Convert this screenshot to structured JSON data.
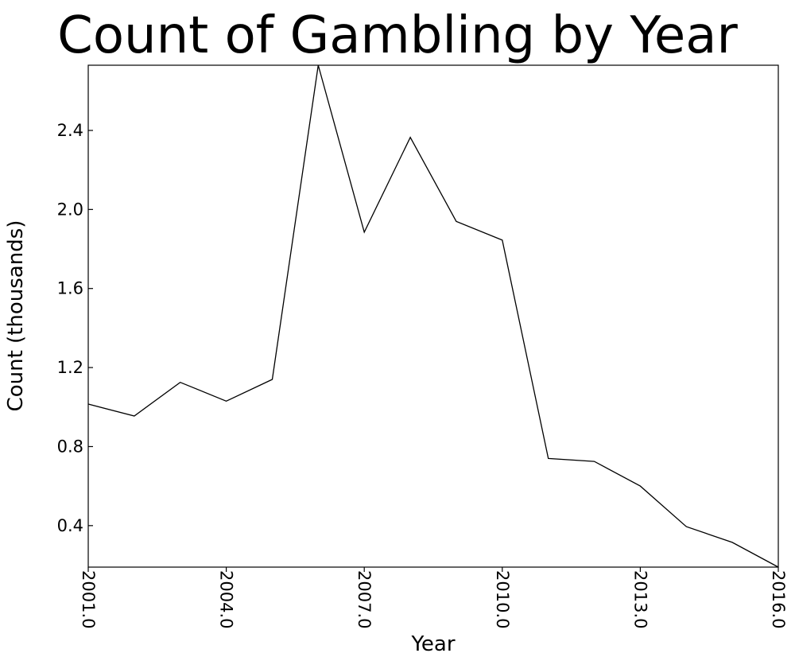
{
  "chart_data": {
    "type": "line",
    "title": "Count of Gambling by Year",
    "xlabel": "Year",
    "ylabel": "Count (thousands)",
    "xlim": [
      2001,
      2016
    ],
    "ylim": [
      0.19,
      2.73
    ],
    "x_ticks": [
      2001,
      2004,
      2007,
      2010,
      2013,
      2016
    ],
    "x_tick_labels": [
      "2001.0",
      "2004.0",
      "2007.0",
      "2010.0",
      "2013.0",
      "2016.0"
    ],
    "y_ticks": [
      0.4,
      0.8,
      1.2,
      1.6,
      2.0,
      2.4
    ],
    "y_tick_labels": [
      "0.4",
      "0.8",
      "1.2",
      "1.6",
      "2.0",
      "2.4"
    ],
    "grid": false,
    "series": [
      {
        "x": [
          2001,
          2002,
          2003,
          2004,
          2005,
          2006,
          2007,
          2008,
          2009,
          2010,
          2011,
          2012,
          2013,
          2014,
          2015,
          2016
        ],
        "values": [
          1.015,
          0.955,
          1.125,
          1.03,
          1.14,
          2.73,
          1.885,
          2.365,
          1.94,
          1.845,
          0.74,
          0.725,
          0.6,
          0.395,
          0.315,
          0.19
        ]
      }
    ],
    "colors": {
      "line": "#000000",
      "axes": "#000000",
      "background": "#ffffff"
    }
  }
}
